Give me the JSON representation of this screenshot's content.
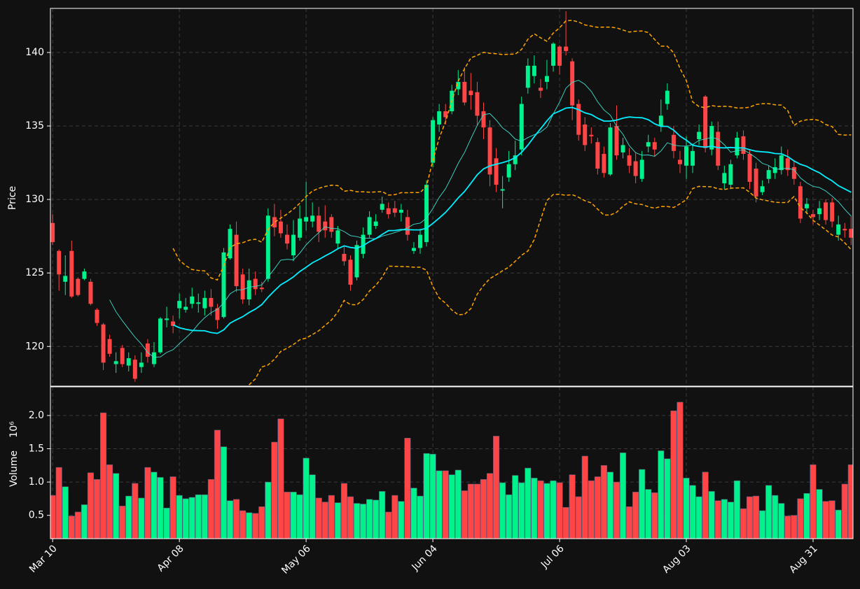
{
  "chart_data": {
    "type": "candlestick",
    "ylabel": "Price",
    "volume_label": "Volume",
    "volume_offset": "10⁶",
    "up_color": "#00f28c",
    "down_color": "#ff4545",
    "grid": true,
    "xlim": [
      -0.35,
      126.3
    ],
    "xticks": [
      {
        "value": 0,
        "label": "Mar 10"
      },
      {
        "value": 20,
        "label": "Apr 08"
      },
      {
        "value": 40,
        "label": "May 06"
      },
      {
        "value": 60,
        "label": "Jun 04"
      },
      {
        "value": 80,
        "label": "Jul 06"
      },
      {
        "value": 100,
        "label": "Aug 03"
      },
      {
        "value": 120,
        "label": "Aug 31"
      }
    ],
    "ylim": [
      117.3,
      143.0
    ],
    "yticks": [
      120,
      125,
      130,
      135,
      140
    ],
    "volume_ylim": [
      0.15,
      2.43
    ],
    "volume_yticks": [
      0.5,
      {
        "value": 1.0,
        "label": "1.0"
      },
      1.5,
      {
        "value": 2.0,
        "label": "2.0"
      }
    ],
    "moving_averages": [
      {
        "period": 10,
        "color": "#3fe0d0"
      },
      {
        "period": 20,
        "color": "#00f0ff"
      }
    ],
    "bollinger": {
      "period": 20,
      "std": 2,
      "color": "#ffa500"
    },
    "open": [
      128.4,
      126.5,
      124.4,
      126.5,
      124.6,
      124.6,
      124.4,
      122.5,
      121.5,
      120.5,
      118.8,
      119.9,
      118.7,
      119.1,
      118.6,
      120.2,
      118.8,
      119.6,
      121.8,
      121.7,
      122.6,
      122.5,
      122.9,
      122.9,
      122.6,
      123.3,
      122.6,
      122.0,
      126.0,
      127.6,
      124.9,
      123.2,
      124.6,
      124.0,
      124.6,
      128.8,
      128.5,
      127.6,
      126.2,
      127.4,
      128.5,
      128.5,
      128.9,
      128.5,
      128.8,
      127.0,
      126.3,
      125.9,
      124.7,
      126.3,
      127.6,
      128.2,
      129.3,
      129.4,
      129.4,
      129.1,
      128.8,
      126.5,
      126.7,
      127.1,
      132.5,
      135.1,
      136.0,
      136.0,
      137.5,
      138.0,
      137.4,
      137.3,
      136.0,
      134.9,
      132.8,
      130.6,
      131.5,
      132.4,
      133.4,
      137.6,
      138.4,
      137.6,
      138.0,
      139.1,
      140.4,
      140.4,
      139.4,
      136.5,
      135.1,
      134.4,
      133.9,
      133.1,
      131.7,
      135.0,
      133.2,
      133.0,
      132.6,
      131.4,
      133.6,
      133.9,
      135.0,
      136.5,
      134.4,
      132.7,
      132.3,
      132.3,
      134.1,
      137.0,
      133.4,
      134.6,
      131.1,
      131.0,
      133.0,
      134.3,
      133.1,
      132.1,
      130.5,
      131.4,
      131.8,
      132.0,
      132.8,
      132.2,
      130.9,
      129.4,
      129.0,
      129.0,
      129.8,
      129.8,
      127.6,
      128.0,
      128.0
    ],
    "high": [
      129.0,
      126.6,
      126.2,
      127.2,
      124.7,
      125.3,
      124.6,
      122.6,
      121.6,
      120.8,
      119.6,
      120.1,
      119.6,
      119.4,
      119.6,
      120.5,
      120.3,
      122.0,
      122.7,
      122.1,
      123.6,
      123.3,
      124.0,
      123.6,
      123.8,
      123.9,
      122.9,
      126.7,
      128.3,
      128.5,
      125.3,
      125.3,
      125.1,
      124.4,
      129.4,
      129.7,
      129.3,
      128.3,
      128.6,
      129.6,
      131.2,
      129.8,
      129.5,
      129.6,
      129.0,
      128.2,
      126.8,
      126.2,
      127.2,
      128.1,
      129.2,
      129.0,
      130.2,
      129.8,
      129.9,
      129.7,
      129.3,
      127.1,
      128.0,
      131.3,
      135.6,
      136.5,
      136.5,
      137.8,
      138.8,
      139.0,
      138.6,
      138.0,
      136.6,
      135.4,
      133.5,
      131.6,
      133.3,
      134.0,
      137.0,
      139.6,
      139.8,
      138.2,
      139.5,
      140.7,
      140.5,
      142.8,
      139.6,
      136.8,
      135.6,
      134.9,
      134.2,
      133.6,
      135.2,
      136.4,
      134.2,
      133.5,
      133.2,
      133.3,
      134.4,
      134.2,
      136.8,
      137.9,
      135.0,
      133.3,
      134.3,
      133.8,
      135.1,
      137.1,
      135.3,
      135.3,
      132.3,
      132.7,
      134.6,
      134.7,
      133.4,
      132.5,
      131.3,
      132.3,
      132.8,
      133.6,
      133.4,
      132.6,
      131.2,
      130.1,
      129.3,
      129.9,
      130.0,
      130.1,
      128.9,
      128.4,
      128.9
    ],
    "low": [
      126.9,
      123.8,
      123.5,
      123.3,
      123.4,
      124.5,
      122.8,
      121.4,
      118.4,
      119.3,
      118.2,
      118.6,
      118.3,
      117.6,
      118.2,
      118.9,
      118.6,
      119.5,
      121.3,
      120.9,
      121.9,
      122.3,
      122.6,
      122.3,
      122.1,
      122.1,
      121.2,
      121.9,
      125.9,
      123.7,
      122.9,
      122.8,
      123.5,
      123.7,
      124.4,
      127.5,
      127.4,
      126.6,
      125.8,
      127.2,
      127.9,
      128.1,
      127.1,
      127.4,
      127.4,
      126.7,
      125.5,
      123.8,
      124.5,
      126.0,
      127.4,
      128.0,
      129.1,
      128.7,
      128.8,
      128.5,
      127.2,
      126.3,
      126.3,
      126.8,
      132.2,
      134.6,
      135.1,
      135.8,
      137.1,
      136.4,
      136.1,
      135.0,
      134.1,
      130.9,
      130.5,
      129.4,
      131.2,
      132.0,
      133.0,
      137.2,
      137.9,
      136.9,
      137.5,
      138.7,
      138.5,
      139.8,
      135.4,
      134.0,
      133.3,
      133.8,
      131.7,
      131.5,
      131.6,
      132.7,
      132.8,
      131.8,
      131.1,
      131.2,
      133.2,
      132.9,
      134.6,
      136.1,
      132.8,
      131.8,
      131.4,
      131.8,
      133.7,
      133.2,
      133.0,
      132.0,
      130.7,
      130.7,
      132.8,
      132.7,
      130.7,
      129.8,
      130.3,
      131.1,
      131.4,
      131.7,
      131.6,
      131.0,
      128.4,
      129.0,
      128.3,
      128.6,
      128.3,
      128.1,
      127.2,
      127.4,
      126.9
    ],
    "close": [
      127.1,
      124.9,
      124.8,
      123.4,
      123.5,
      125.1,
      122.9,
      121.6,
      118.9,
      119.5,
      119.0,
      118.8,
      119.2,
      117.8,
      118.9,
      119.3,
      119.6,
      121.9,
      121.9,
      121.4,
      123.1,
      122.7,
      123.4,
      123.0,
      123.3,
      122.7,
      121.8,
      126.4,
      128.0,
      124.1,
      123.2,
      124.5,
      123.9,
      123.9,
      128.9,
      128.1,
      127.7,
      127.0,
      127.6,
      128.7,
      128.8,
      128.9,
      127.8,
      127.9,
      127.8,
      127.9,
      125.8,
      124.2,
      126.9,
      127.6,
      128.8,
      128.5,
      129.7,
      129.0,
      129.1,
      129.3,
      127.6,
      126.7,
      127.6,
      131.0,
      135.4,
      136.0,
      135.6,
      137.4,
      138.0,
      136.6,
      137.1,
      135.7,
      134.9,
      131.7,
      131.0,
      130.7,
      132.4,
      133.0,
      136.5,
      139.1,
      139.1,
      137.4,
      138.4,
      140.6,
      139.1,
      140.1,
      136.4,
      134.4,
      133.7,
      134.3,
      132.1,
      131.8,
      134.9,
      133.0,
      133.7,
      132.3,
      131.6,
      132.7,
      133.9,
      133.4,
      135.7,
      137.4,
      133.3,
      132.4,
      133.6,
      133.3,
      134.6,
      133.5,
      135.0,
      132.3,
      131.8,
      132.4,
      134.2,
      133.1,
      131.2,
      130.2,
      130.9,
      132.0,
      132.2,
      133.0,
      132.0,
      131.4,
      128.7,
      129.7,
      128.8,
      129.4,
      128.6,
      128.5,
      128.3,
      127.9,
      127.4
    ],
    "volume": [
      0.8,
      1.22,
      0.93,
      0.49,
      0.55,
      0.66,
      1.14,
      1.04,
      2.04,
      1.26,
      1.13,
      0.64,
      0.79,
      0.98,
      0.76,
      1.22,
      1.15,
      1.07,
      0.61,
      1.08,
      0.8,
      0.75,
      0.77,
      0.81,
      0.81,
      1.04,
      1.78,
      1.53,
      0.72,
      0.74,
      0.57,
      0.54,
      0.53,
      0.63,
      1.0,
      1.6,
      1.95,
      0.85,
      0.85,
      0.81,
      1.36,
      1.11,
      0.76,
      0.7,
      0.8,
      0.69,
      0.98,
      0.78,
      0.68,
      0.67,
      0.74,
      0.73,
      0.86,
      0.55,
      0.8,
      0.71,
      1.66,
      0.91,
      0.79,
      1.43,
      1.42,
      1.17,
      1.17,
      1.11,
      1.18,
      0.87,
      0.97,
      0.97,
      1.04,
      1.13,
      1.69,
      0.99,
      0.81,
      1.1,
      0.99,
      1.21,
      1.06,
      1.02,
      0.98,
      1.02,
      0.99,
      0.62,
      1.11,
      0.78,
      1.39,
      1.02,
      1.08,
      1.25,
      1.15,
      1.0,
      1.44,
      0.63,
      0.85,
      1.19,
      0.89,
      0.84,
      1.47,
      1.35,
      2.07,
      2.2,
      1.06,
      0.95,
      0.78,
      1.15,
      0.86,
      0.72,
      0.74,
      0.7,
      1.02,
      0.6,
      0.78,
      0.79,
      0.57,
      0.95,
      0.8,
      0.68,
      0.49,
      0.5,
      0.75,
      0.83,
      1.26,
      0.89,
      0.71,
      0.72,
      0.58,
      0.97,
      1.26
    ]
  }
}
